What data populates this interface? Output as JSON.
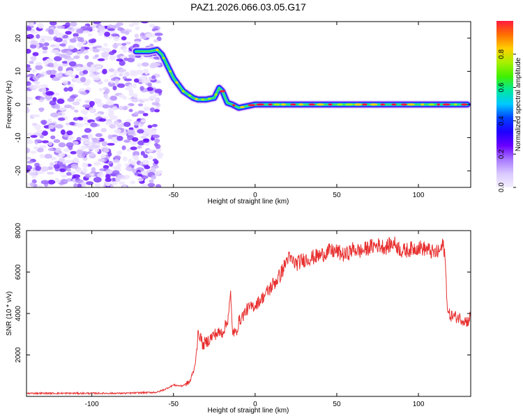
{
  "title": "PAZ1.2026.066.03.05.G17",
  "chart_data": [
    {
      "type": "heatmap",
      "name": "spectrogram",
      "xlabel": "Height of straight line (km)",
      "ylabel": "Frequency (Hz)",
      "xlim": [
        -140,
        132
      ],
      "ylim": [
        -25,
        25
      ],
      "xticks": [
        -100,
        -50,
        0,
        50,
        100
      ],
      "yticks": [
        -20,
        -10,
        0,
        10,
        20
      ],
      "grid": false,
      "colorbar": {
        "label": "Normalized spectral amplitude",
        "range": [
          0,
          1
        ],
        "ticks": [
          0.0,
          0.2,
          0.4,
          0.6,
          0.8
        ],
        "tick_labels": [
          "0.0",
          "0.2",
          "0.4",
          "0.6",
          "0.8"
        ],
        "colors": [
          "#f4f0ff",
          "#d9c8ff",
          "#a878ff",
          "#6a00ff",
          "#1e00ff",
          "#0040ff",
          "#00c8ff",
          "#00e8a0",
          "#40f000",
          "#a8f000",
          "#ffd000",
          "#ff7000",
          "#ff1a3c"
        ]
      },
      "ridge": {
        "note": "dominant frequency track (Hz) vs height (km)",
        "x": [
          -73,
          -65,
          -60,
          -57,
          -54,
          -50,
          -47,
          -44,
          -41,
          -38,
          -35,
          -30,
          -25,
          -22,
          -20,
          -17,
          -14,
          -10,
          -5,
          0,
          130
        ],
        "y": [
          16,
          16,
          16.5,
          15,
          12,
          8,
          6,
          4,
          3,
          2,
          1.5,
          1.5,
          2,
          5,
          4,
          0.5,
          0,
          -1,
          -0.5,
          0,
          0
        ]
      },
      "noise_region_km": [
        -140,
        -58
      ]
    },
    {
      "type": "line",
      "name": "snr",
      "xlabel": "Height of straight line (km)",
      "ylabel": "SNR (10 * v/v)",
      "xlim": [
        -140,
        132
      ],
      "ylim": [
        0,
        8000
      ],
      "xticks": [
        -100,
        -50,
        0,
        50,
        100
      ],
      "yticks": [
        2000,
        4000,
        6000,
        8000
      ],
      "grid": false,
      "color": "#e83030",
      "series": [
        {
          "name": "SNR",
          "x": [
            -140,
            -120,
            -100,
            -80,
            -60,
            -55,
            -50,
            -45,
            -40,
            -37,
            -35,
            -34,
            -32,
            -30,
            -25,
            -20,
            -17,
            -15,
            -14,
            -12,
            -10,
            -5,
            0,
            5,
            10,
            15,
            18,
            20,
            25,
            30,
            40,
            45,
            50,
            55,
            60,
            65,
            70,
            75,
            80,
            85,
            90,
            95,
            100,
            105,
            110,
            113,
            115,
            116,
            118,
            120,
            125,
            130,
            132
          ],
          "y": [
            150,
            150,
            150,
            150,
            200,
            350,
            550,
            500,
            700,
            1400,
            2900,
            3000,
            2500,
            2600,
            3000,
            3100,
            3600,
            4900,
            3200,
            3000,
            3600,
            4200,
            4400,
            4800,
            5300,
            5800,
            6300,
            6700,
            6400,
            6600,
            6800,
            7000,
            7000,
            6800,
            7100,
            7000,
            7200,
            7300,
            7200,
            7400,
            7000,
            7100,
            7200,
            7100,
            6900,
            7000,
            7300,
            7000,
            4000,
            3900,
            3800,
            3600,
            3900
          ]
        }
      ]
    }
  ]
}
